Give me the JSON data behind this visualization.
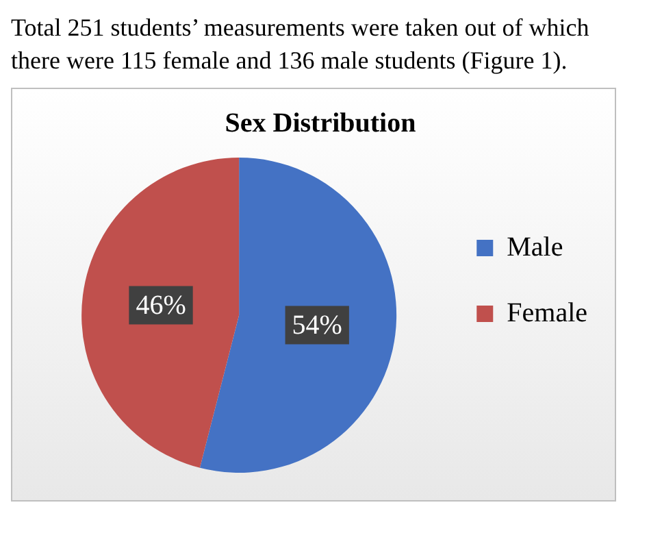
{
  "chart_data": {
    "type": "pie",
    "title": "Sex Distribution",
    "categories": [
      "Male",
      "Female"
    ],
    "values": [
      54,
      46
    ],
    "colors": [
      "#4472c4",
      "#c0504d"
    ],
    "value_labels": [
      "54%",
      "46%"
    ],
    "legend": "right",
    "annotations": [
      "Total 251 students’ measurements were taken out of which there were 115 female and 136 male students (Figure 1)."
    ]
  }
}
